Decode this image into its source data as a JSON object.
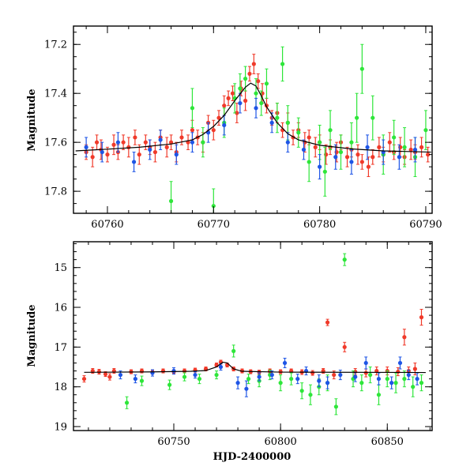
{
  "colors": {
    "red": "#f03a2a",
    "green": "#2ee63a",
    "blue": "#1e55e6",
    "model": "#000000"
  },
  "chart_data": [
    {
      "type": "scatter",
      "ylabel": "Magnitude",
      "xlabel": "",
      "xlim": [
        60756.8,
        60790.6
      ],
      "ylim": [
        17.89,
        17.125
      ],
      "y_inverted": true,
      "x_ticks": [
        60760,
        60770,
        60780,
        60790
      ],
      "y_ticks": [
        17.2,
        17.4,
        17.6,
        17.8
      ],
      "x_minor_step": 2,
      "y_minor_step": 0.05,
      "model": {
        "x": [
          60757,
          60760,
          60763,
          60766,
          60768,
          60769,
          60770,
          60771,
          60772,
          60773,
          60773.5,
          60774,
          60774.5,
          60775,
          60776,
          60777,
          60778,
          60780,
          60783,
          60786,
          60790.5
        ],
        "y": [
          17.635,
          17.628,
          17.62,
          17.607,
          17.59,
          17.568,
          17.535,
          17.49,
          17.43,
          17.375,
          17.358,
          17.37,
          17.41,
          17.455,
          17.52,
          17.565,
          17.59,
          17.612,
          17.627,
          17.635,
          17.64
        ]
      },
      "series": [
        {
          "color": "red",
          "x": [
            60758,
            60758.6,
            60759,
            60759.4,
            60760,
            60760.6,
            60761,
            60761.5,
            60762,
            60762.6,
            60763,
            60763.6,
            60764,
            60764.5,
            60765,
            60765.6,
            60766,
            60766.5,
            60767,
            60767.6,
            60768,
            60768.5,
            60769,
            60769.5,
            60770,
            60770.5,
            60771,
            60771.4,
            60771.8,
            60772.2,
            60772.6,
            60773,
            60773.4,
            60773.8,
            60774.2,
            60774.6,
            60775,
            60775.5,
            60776,
            60776.5,
            60777,
            60777.5,
            60778,
            60778.6,
            60779,
            60779.6,
            60780,
            60780.6,
            60781,
            60781.6,
            60782,
            60782.6,
            60783,
            60783.6,
            60784,
            60784.6,
            60785,
            60785.6,
            60786,
            60786.6,
            60787,
            60787.6,
            60788,
            60788.6,
            60789,
            60789.6,
            60790.2
          ],
          "y": [
            17.64,
            17.66,
            17.6,
            17.63,
            17.65,
            17.61,
            17.64,
            17.6,
            17.62,
            17.58,
            17.65,
            17.6,
            17.62,
            17.64,
            17.58,
            17.62,
            17.6,
            17.64,
            17.58,
            17.6,
            17.55,
            17.58,
            17.6,
            17.52,
            17.55,
            17.5,
            17.45,
            17.42,
            17.4,
            17.48,
            17.38,
            17.43,
            17.32,
            17.28,
            17.35,
            17.4,
            17.45,
            17.5,
            17.48,
            17.55,
            17.52,
            17.58,
            17.55,
            17.6,
            17.58,
            17.62,
            17.6,
            17.65,
            17.62,
            17.64,
            17.6,
            17.66,
            17.63,
            17.65,
            17.68,
            17.7,
            17.66,
            17.62,
            17.65,
            17.6,
            17.64,
            17.62,
            17.66,
            17.63,
            17.64,
            17.62,
            17.65
          ],
          "err": [
            0.03,
            0.04,
            0.03,
            0.04,
            0.03,
            0.04,
            0.03,
            0.03,
            0.04,
            0.03,
            0.04,
            0.03,
            0.03,
            0.04,
            0.03,
            0.04,
            0.03,
            0.04,
            0.03,
            0.03,
            0.04,
            0.03,
            0.04,
            0.03,
            0.04,
            0.03,
            0.04,
            0.03,
            0.03,
            0.04,
            0.03,
            0.04,
            0.03,
            0.04,
            0.03,
            0.04,
            0.03,
            0.03,
            0.04,
            0.03,
            0.04,
            0.03,
            0.03,
            0.04,
            0.03,
            0.04,
            0.03,
            0.04,
            0.03,
            0.04,
            0.03,
            0.04,
            0.03,
            0.04,
            0.03,
            0.04,
            0.03,
            0.04,
            0.03,
            0.04,
            0.03,
            0.04,
            0.03,
            0.04,
            0.03,
            0.04,
            0.03
          ]
        },
        {
          "color": "green",
          "x": [
            60766,
            60768,
            60769,
            60770,
            60771,
            60772,
            60772.5,
            60773,
            60774,
            60774.5,
            60775,
            60776,
            60776.5,
            60777,
            60778,
            60779,
            60780,
            60780.5,
            60781,
            60782,
            60783,
            60783.5,
            60784,
            60785,
            60786,
            60787,
            60788,
            60789,
            60790
          ],
          "y": [
            17.84,
            17.46,
            17.6,
            17.86,
            17.52,
            17.42,
            17.38,
            17.34,
            17.4,
            17.44,
            17.36,
            17.5,
            17.28,
            17.52,
            17.56,
            17.68,
            17.6,
            17.72,
            17.55,
            17.64,
            17.6,
            17.5,
            17.3,
            17.5,
            17.65,
            17.58,
            17.62,
            17.66,
            17.55
          ],
          "err": [
            0.08,
            0.08,
            0.06,
            0.07,
            0.06,
            0.06,
            0.06,
            0.05,
            0.06,
            0.05,
            0.06,
            0.06,
            0.07,
            0.07,
            0.06,
            0.08,
            0.07,
            0.1,
            0.08,
            0.07,
            0.08,
            0.1,
            0.1,
            0.09,
            0.08,
            0.07,
            0.08,
            0.08,
            0.08
          ]
        },
        {
          "color": "blue",
          "x": [
            60758,
            60759.5,
            60761,
            60762.5,
            60764,
            60765,
            60766.5,
            60768,
            60769.5,
            60771,
            60772.5,
            60774,
            60775.5,
            60777,
            60778.5,
            60780,
            60781.5,
            60783,
            60784.5,
            60786,
            60787.5,
            60789
          ],
          "y": [
            17.62,
            17.64,
            17.6,
            17.68,
            17.63,
            17.59,
            17.65,
            17.6,
            17.56,
            17.53,
            17.44,
            17.46,
            17.52,
            17.6,
            17.63,
            17.7,
            17.66,
            17.68,
            17.62,
            17.64,
            17.66,
            17.63
          ],
          "err": [
            0.04,
            0.04,
            0.04,
            0.04,
            0.04,
            0.04,
            0.04,
            0.04,
            0.04,
            0.04,
            0.04,
            0.04,
            0.04,
            0.04,
            0.04,
            0.05,
            0.05,
            0.05,
            0.05,
            0.05,
            0.05,
            0.05
          ]
        }
      ]
    },
    {
      "type": "scatter",
      "ylabel": "Magnitude",
      "xlabel": "HJD-2400000",
      "xlim": [
        60703,
        60871
      ],
      "ylim": [
        19.1,
        14.35
      ],
      "y_inverted": true,
      "x_ticks": [
        60750,
        60800,
        60850
      ],
      "y_ticks": [
        15,
        16,
        17,
        18,
        19
      ],
      "x_minor_step": 10,
      "y_minor_step": 0.2,
      "model": {
        "x": [
          60708,
          60740,
          60758,
          60765,
          60770,
          60773,
          60775,
          60778,
          60782,
          60800,
          60868
        ],
        "y": [
          17.635,
          17.625,
          17.61,
          17.59,
          17.5,
          17.38,
          17.4,
          17.55,
          17.61,
          17.63,
          17.64
        ]
      },
      "series": [
        {
          "color": "red",
          "x": [
            60708,
            60712,
            60715,
            60718,
            60720,
            60722,
            60730,
            60735,
            60740,
            60745,
            60750,
            60755,
            60760,
            60765,
            60770,
            60772,
            60775,
            60778,
            60782,
            60786,
            60790,
            60795,
            60800,
            60805,
            60810,
            60815,
            60820,
            60822,
            60825,
            60830,
            60835,
            60840,
            60845,
            60850,
            60855,
            60858,
            60860,
            60863,
            60866
          ],
          "y": [
            17.8,
            17.6,
            17.62,
            17.68,
            17.75,
            17.6,
            17.62,
            17.6,
            17.63,
            17.6,
            17.62,
            17.6,
            17.58,
            17.55,
            17.45,
            17.38,
            17.45,
            17.55,
            17.6,
            17.62,
            17.63,
            17.6,
            17.62,
            17.6,
            17.63,
            17.65,
            17.6,
            16.38,
            17.7,
            17.0,
            17.62,
            17.65,
            17.6,
            17.6,
            17.62,
            16.75,
            17.6,
            17.55,
            16.25
          ],
          "err": [
            0.08,
            0.06,
            0.06,
            0.06,
            0.08,
            0.06,
            0.05,
            0.05,
            0.05,
            0.05,
            0.05,
            0.05,
            0.05,
            0.05,
            0.05,
            0.05,
            0.05,
            0.05,
            0.05,
            0.05,
            0.05,
            0.05,
            0.05,
            0.05,
            0.06,
            0.06,
            0.06,
            0.08,
            0.1,
            0.12,
            0.08,
            0.1,
            0.1,
            0.1,
            0.1,
            0.2,
            0.1,
            0.15,
            0.2
          ]
        },
        {
          "color": "green",
          "x": [
            60728,
            60735,
            60748,
            60755,
            60762,
            60770,
            60778,
            60785,
            60790,
            60795,
            60800,
            60805,
            60810,
            60814,
            60818,
            60822,
            60826,
            60830,
            60834,
            60838,
            60842,
            60846,
            60850,
            60854,
            60858,
            60862,
            60866
          ],
          "y": [
            18.4,
            17.85,
            17.95,
            17.75,
            17.8,
            17.7,
            17.1,
            17.8,
            17.85,
            17.7,
            17.9,
            17.8,
            18.1,
            18.2,
            18.0,
            17.9,
            18.5,
            14.8,
            17.8,
            17.9,
            17.7,
            18.2,
            17.8,
            17.9,
            17.8,
            18.0,
            17.9
          ],
          "err": [
            0.15,
            0.12,
            0.12,
            0.1,
            0.12,
            0.1,
            0.15,
            0.12,
            0.15,
            0.12,
            0.2,
            0.15,
            0.2,
            0.25,
            0.2,
            0.2,
            0.2,
            0.15,
            0.2,
            0.2,
            0.2,
            0.25,
            0.2,
            0.25,
            0.2,
            0.25,
            0.2
          ]
        },
        {
          "color": "blue",
          "x": [
            60725,
            60732,
            60740,
            60750,
            60760,
            60772,
            60780,
            60784,
            60790,
            60796,
            60802,
            60808,
            60812,
            60818,
            60822,
            60828,
            60835,
            60840,
            60846,
            60852,
            60856,
            60860,
            60864
          ],
          "y": [
            17.7,
            17.8,
            17.65,
            17.6,
            17.7,
            17.5,
            17.9,
            18.05,
            17.75,
            17.7,
            17.4,
            17.8,
            17.6,
            17.85,
            17.9,
            17.7,
            17.75,
            17.4,
            17.8,
            17.9,
            17.4,
            17.7,
            17.8
          ],
          "err": [
            0.1,
            0.1,
            0.08,
            0.08,
            0.08,
            0.08,
            0.15,
            0.2,
            0.1,
            0.1,
            0.12,
            0.12,
            0.1,
            0.15,
            0.15,
            0.12,
            0.12,
            0.15,
            0.15,
            0.15,
            0.15,
            0.12,
            0.15
          ]
        }
      ]
    }
  ]
}
